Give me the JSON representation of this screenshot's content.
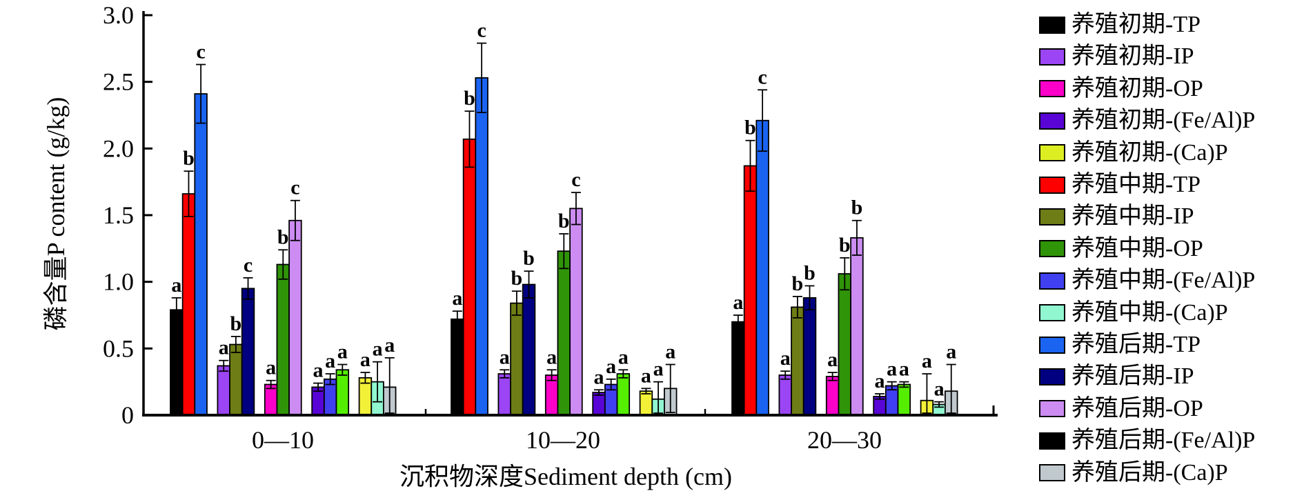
{
  "chart_data": {
    "type": "bar",
    "title": "",
    "ylabel": "磷含量P content (g/kg)",
    "xlabel": "沉积物深度Sediment depth (cm)",
    "ylim": [
      0,
      3.0
    ],
    "ytick_values": [
      0,
      0.5,
      1.0,
      1.5,
      2.0,
      2.5,
      3.0
    ],
    "ytick_labels": [
      "0",
      "0.5",
      "1.0",
      "1.5",
      "2.0",
      "2.5",
      "3.0"
    ],
    "grid": false,
    "legend_position": "right",
    "groups": [
      "0—10",
      "10—20",
      "20—30"
    ],
    "fractions": [
      "TP",
      "IP",
      "OP",
      "(Fe/Al)P",
      "(Ca)P"
    ],
    "series": [
      {
        "label": "养殖初期-TP",
        "legend_color": "#000000",
        "bar_color": "#000000"
      },
      {
        "label": "养殖初期-IP",
        "legend_color": "#9B45F5",
        "bar_color": "#9B45F5"
      },
      {
        "label": "养殖初期-OP",
        "legend_color": "#FA00C8",
        "bar_color": "#FA00C8"
      },
      {
        "label": "养殖初期-(Fe/Al)P",
        "legend_color": "#5805D5",
        "bar_color": "#5805D5"
      },
      {
        "label": "养殖初期-(Ca)P",
        "legend_color": "#DCEE22",
        "bar_color": "#F2F138"
      },
      {
        "label": "养殖中期-TP",
        "legend_color": "#FF0000",
        "bar_color": "#FF0000"
      },
      {
        "label": "养殖中期-IP",
        "legend_color": "#6E7D15",
        "bar_color": "#6E7D15"
      },
      {
        "label": "养殖中期-OP",
        "legend_color": "#309408",
        "bar_color": "#309408"
      },
      {
        "label": "养殖中期-(Fe/Al)P",
        "legend_color": "#4040F0",
        "bar_color": "#4040F0"
      },
      {
        "label": "养殖中期-(Ca)P",
        "legend_color": "#90F7D0",
        "bar_color": "#90F7D0"
      },
      {
        "label": "养殖后期-TP",
        "legend_color": "#1B64F2",
        "bar_color": "#1B64F2"
      },
      {
        "label": "养殖后期-IP",
        "legend_color": "#000080",
        "bar_color": "#000080"
      },
      {
        "label": "养殖后期-OP",
        "legend_color": "#CC8CF2",
        "bar_color": "#CC8CF2"
      },
      {
        "label": "养殖后期-(Fe/Al)P",
        "legend_color": "#000000",
        "bar_color": "#55EE00"
      },
      {
        "label": "养殖后期-(Ca)P",
        "legend_color": "#C0C9CE",
        "bar_color": "#C0C9CE"
      }
    ],
    "bar_order": [
      0,
      5,
      10,
      1,
      6,
      11,
      2,
      7,
      12,
      3,
      8,
      13,
      4,
      9,
      14
    ],
    "values": [
      {
        "group": "0—10",
        "bars": [
          {
            "s": 0,
            "v": 0.79,
            "e": 0.09,
            "letter": "a"
          },
          {
            "s": 5,
            "v": 1.66,
            "e": 0.17,
            "letter": "b"
          },
          {
            "s": 10,
            "v": 2.41,
            "e": 0.22,
            "letter": "c"
          },
          {
            "s": 1,
            "v": 0.37,
            "e": 0.04,
            "letter": "a"
          },
          {
            "s": 6,
            "v": 0.53,
            "e": 0.06,
            "letter": "b"
          },
          {
            "s": 11,
            "v": 0.95,
            "e": 0.08,
            "letter": "c"
          },
          {
            "s": 2,
            "v": 0.23,
            "e": 0.03,
            "letter": "a"
          },
          {
            "s": 7,
            "v": 1.13,
            "e": 0.11,
            "letter": "b"
          },
          {
            "s": 12,
            "v": 1.46,
            "e": 0.15,
            "letter": "c"
          },
          {
            "s": 3,
            "v": 0.21,
            "e": 0.03,
            "letter": "a"
          },
          {
            "s": 8,
            "v": 0.27,
            "e": 0.04,
            "letter": "a"
          },
          {
            "s": 13,
            "v": 0.34,
            "e": 0.04,
            "letter": "a"
          },
          {
            "s": 4,
            "v": 0.28,
            "e": 0.04,
            "letter": "a"
          },
          {
            "s": 9,
            "v": 0.25,
            "e": 0.15,
            "letter": "a"
          },
          {
            "s": 14,
            "v": 0.21,
            "e": 0.22,
            "letter": "a"
          }
        ]
      },
      {
        "group": "10—20",
        "bars": [
          {
            "s": 0,
            "v": 0.72,
            "e": 0.06,
            "letter": "a"
          },
          {
            "s": 5,
            "v": 2.07,
            "e": 0.21,
            "letter": "b"
          },
          {
            "s": 10,
            "v": 2.53,
            "e": 0.26,
            "letter": "c"
          },
          {
            "s": 1,
            "v": 0.31,
            "e": 0.03,
            "letter": "a"
          },
          {
            "s": 6,
            "v": 0.84,
            "e": 0.09,
            "letter": "b"
          },
          {
            "s": 11,
            "v": 0.98,
            "e": 0.1,
            "letter": "b"
          },
          {
            "s": 2,
            "v": 0.3,
            "e": 0.04,
            "letter": "a"
          },
          {
            "s": 7,
            "v": 1.23,
            "e": 0.13,
            "letter": "b"
          },
          {
            "s": 12,
            "v": 1.55,
            "e": 0.12,
            "letter": "c"
          },
          {
            "s": 3,
            "v": 0.17,
            "e": 0.02,
            "letter": "a"
          },
          {
            "s": 8,
            "v": 0.23,
            "e": 0.04,
            "letter": "a"
          },
          {
            "s": 13,
            "v": 0.31,
            "e": 0.03,
            "letter": "a"
          },
          {
            "s": 4,
            "v": 0.18,
            "e": 0.02,
            "letter": "a"
          },
          {
            "s": 9,
            "v": 0.12,
            "e": 0.13,
            "letter": "a"
          },
          {
            "s": 14,
            "v": 0.2,
            "e": 0.18,
            "letter": "a"
          }
        ]
      },
      {
        "group": "20—30",
        "bars": [
          {
            "s": 0,
            "v": 0.7,
            "e": 0.05,
            "letter": "a"
          },
          {
            "s": 5,
            "v": 1.87,
            "e": 0.19,
            "letter": "b"
          },
          {
            "s": 10,
            "v": 2.21,
            "e": 0.23,
            "letter": "c"
          },
          {
            "s": 1,
            "v": 0.3,
            "e": 0.03,
            "letter": "a"
          },
          {
            "s": 6,
            "v": 0.81,
            "e": 0.08,
            "letter": "b"
          },
          {
            "s": 11,
            "v": 0.88,
            "e": 0.09,
            "letter": "b"
          },
          {
            "s": 2,
            "v": 0.29,
            "e": 0.03,
            "letter": "a"
          },
          {
            "s": 7,
            "v": 1.06,
            "e": 0.12,
            "letter": "b"
          },
          {
            "s": 12,
            "v": 1.33,
            "e": 0.13,
            "letter": "b"
          },
          {
            "s": 3,
            "v": 0.14,
            "e": 0.02,
            "letter": "a"
          },
          {
            "s": 8,
            "v": 0.22,
            "e": 0.03,
            "letter": "a"
          },
          {
            "s": 13,
            "v": 0.23,
            "e": 0.02,
            "letter": "a"
          },
          {
            "s": 4,
            "v": 0.11,
            "e": 0.2,
            "letter": "a"
          },
          {
            "s": 9,
            "v": 0.08,
            "e": 0.02,
            "letter": "a"
          },
          {
            "s": 14,
            "v": 0.18,
            "e": 0.2,
            "letter": "a"
          }
        ]
      }
    ]
  }
}
